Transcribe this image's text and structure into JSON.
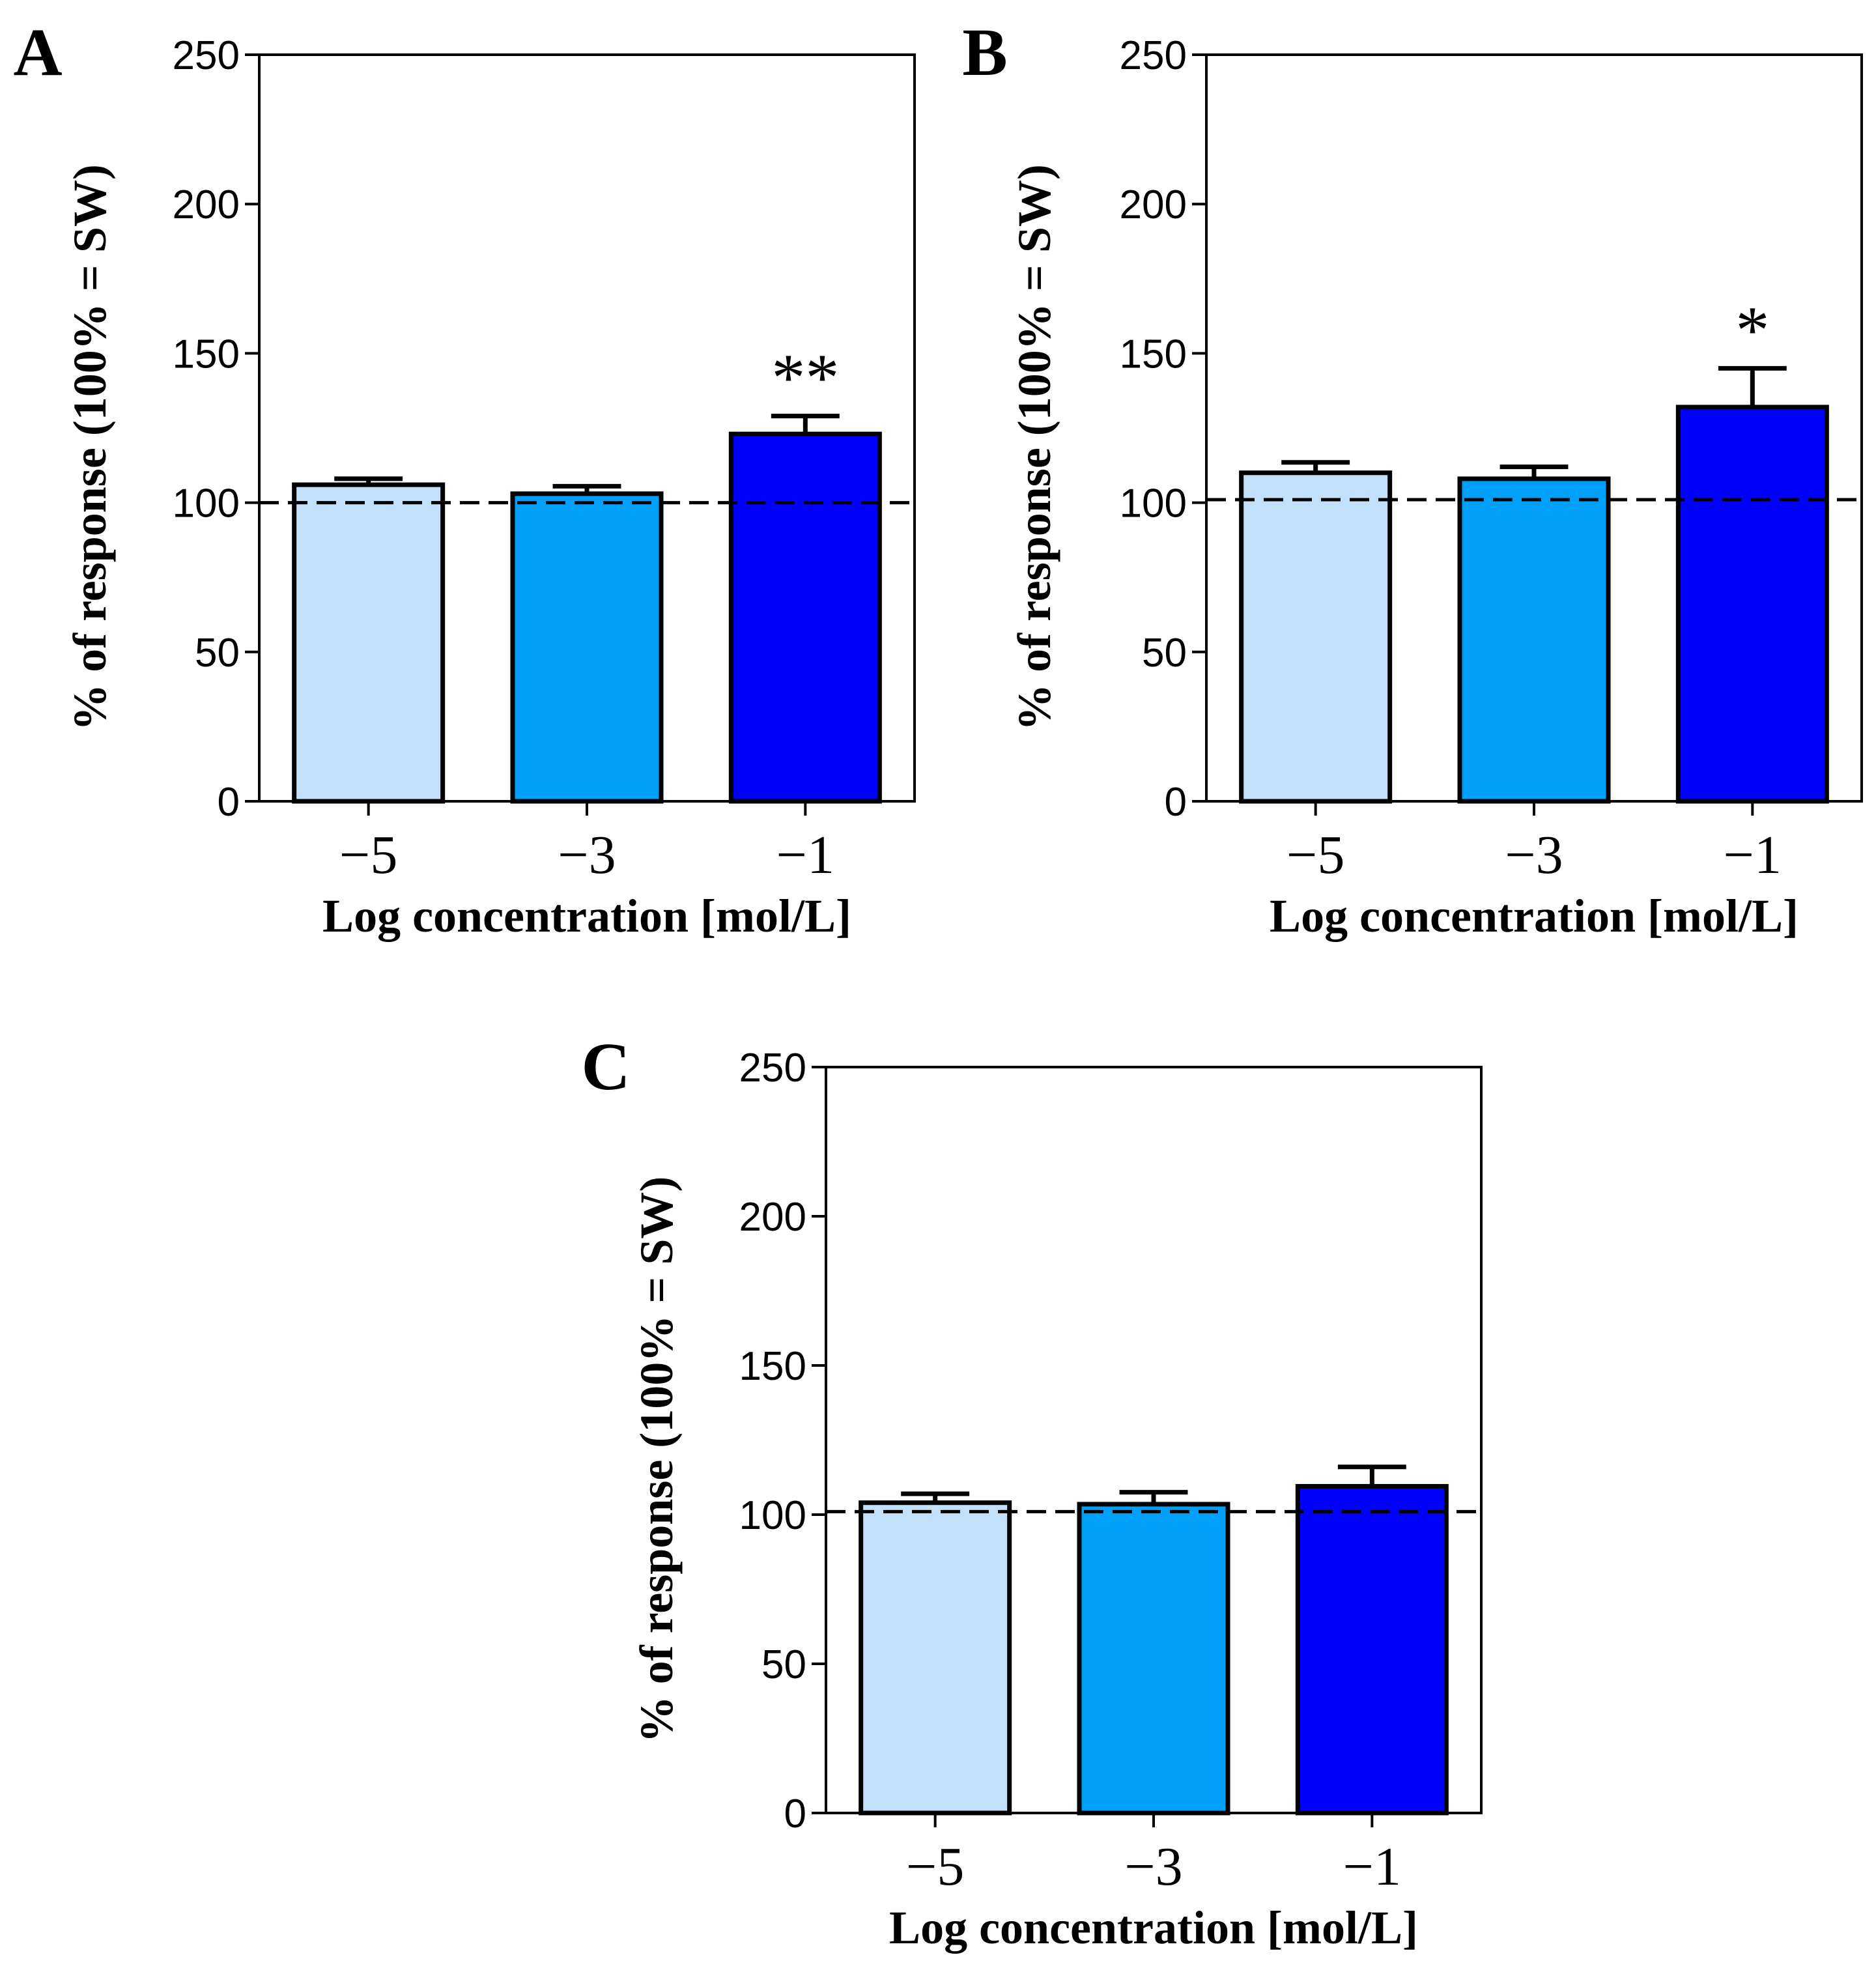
{
  "chart_data": [
    {
      "panel": "A",
      "type": "bar",
      "categories": [
        "−5",
        "−3",
        "−1"
      ],
      "values": [
        106,
        103,
        123
      ],
      "errors": [
        2,
        2.5,
        6
      ],
      "significance": [
        "",
        "",
        "**"
      ],
      "colors": [
        "#c2e0fa",
        "#00a0fa",
        "#0000ff"
      ],
      "reference_line": 100,
      "xlabel": "Log concentration [mol/L]",
      "ylabel": "% of response (100% = SW)",
      "ylim": [
        0,
        250
      ],
      "yticks": [
        0,
        50,
        100,
        150,
        200,
        250
      ]
    },
    {
      "panel": "B",
      "type": "bar",
      "categories": [
        "−5",
        "−3",
        "−1"
      ],
      "values": [
        110,
        108,
        132
      ],
      "errors": [
        3.5,
        4,
        13
      ],
      "significance": [
        "",
        "",
        "*"
      ],
      "colors": [
        "#c2e0fa",
        "#00a0fa",
        "#0000ff"
      ],
      "reference_line": 101,
      "xlabel": "Log concentration [mol/L]",
      "ylabel": "% of response (100% = SW)",
      "ylim": [
        0,
        250
      ],
      "yticks": [
        0,
        50,
        100,
        150,
        200,
        250
      ]
    },
    {
      "panel": "C",
      "type": "bar",
      "categories": [
        "−5",
        "−3",
        "−1"
      ],
      "values": [
        104,
        103.5,
        109.5
      ],
      "errors": [
        3,
        4,
        6.5
      ],
      "significance": [
        "",
        "",
        ""
      ],
      "colors": [
        "#c2e0fa",
        "#00a0fa",
        "#0000ff"
      ],
      "reference_line": 101,
      "xlabel": "Log concentration [mol/L]",
      "ylabel": "% of response (100% = SW)",
      "ylim": [
        0,
        250
      ],
      "yticks": [
        0,
        50,
        100,
        150,
        200,
        250
      ]
    }
  ]
}
